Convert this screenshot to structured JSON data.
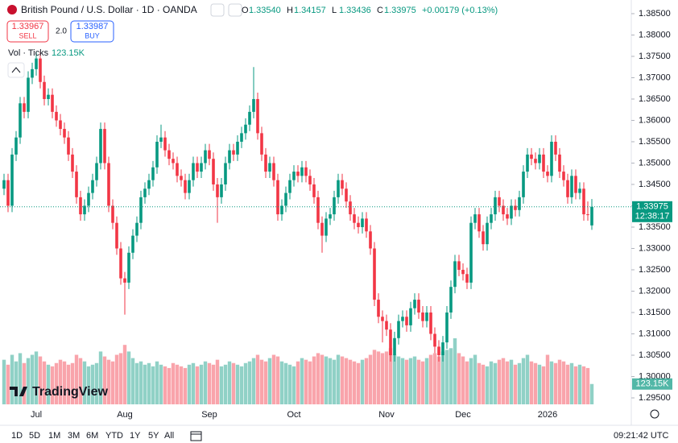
{
  "header": {
    "title": "British Pound / U.S. Dollar · 1D · OANDA",
    "ohlc": [
      {
        "key": "O",
        "value": "1.33540"
      },
      {
        "key": "H",
        "value": "1.34157"
      },
      {
        "key": "L",
        "value": "1.33436"
      },
      {
        "key": "C",
        "value": "1.33975"
      }
    ],
    "change": "+0.00179 (+0.13%)",
    "sell_price": "1.33967",
    "sell": "SELL",
    "spread": "2.0",
    "buy_price": "1.33987",
    "buy": "BUY",
    "volume_title": "Vol · Ticks",
    "volume_value": "123.15K"
  },
  "price_badge": {
    "price": "1.33975",
    "countdown": "12:38:17"
  },
  "logo": "TradingView",
  "toolbar": {
    "ranges": [
      "1D",
      "5D",
      "1M",
      "3M",
      "6M",
      "YTD",
      "1Y",
      "5Y",
      "All"
    ],
    "clock": "09:21:42 UTC"
  },
  "chart_data": {
    "type": "candlestick",
    "up_color": "#089981",
    "down_color": "#f23645",
    "ylim": [
      1.2933,
      1.3882
    ],
    "yticks": [
      {
        "value": 1.385,
        "label": "1.38500"
      },
      {
        "value": 1.38,
        "label": "1.38000"
      },
      {
        "value": 1.375,
        "label": "1.37500"
      },
      {
        "value": 1.37,
        "label": "1.37000"
      },
      {
        "value": 1.365,
        "label": "1.36500"
      },
      {
        "value": 1.36,
        "label": "1.36000"
      },
      {
        "value": 1.355,
        "label": "1.35500"
      },
      {
        "value": 1.35,
        "label": "1.35000"
      },
      {
        "value": 1.345,
        "label": "1.34500"
      },
      {
        "value": 1.34,
        "label": "1.34000"
      },
      {
        "value": 1.335,
        "label": "1.33500"
      },
      {
        "value": 1.33,
        "label": "1.33000"
      },
      {
        "value": 1.325,
        "label": "1.32500"
      },
      {
        "value": 1.32,
        "label": "1.32000"
      },
      {
        "value": 1.315,
        "label": "1.31500"
      },
      {
        "value": 1.31,
        "label": "1.31000"
      },
      {
        "value": 1.305,
        "label": "1.30500"
      },
      {
        "value": 1.3,
        "label": "1.30000"
      },
      {
        "value": 1.295,
        "label": "1.29500"
      }
    ],
    "categories": [
      null,
      null,
      null,
      null,
      null,
      null,
      null,
      null,
      "Jul",
      null,
      null,
      null,
      null,
      null,
      null,
      null,
      null,
      null,
      null,
      null,
      null,
      null,
      null,
      null,
      null,
      null,
      null,
      null,
      null,
      null,
      "Aug",
      null,
      null,
      null,
      null,
      null,
      null,
      null,
      null,
      null,
      null,
      null,
      null,
      null,
      null,
      null,
      null,
      null,
      null,
      null,
      null,
      "Sep",
      null,
      null,
      null,
      null,
      null,
      null,
      null,
      null,
      null,
      null,
      null,
      null,
      null,
      null,
      null,
      null,
      null,
      null,
      null,
      null,
      "Oct",
      null,
      null,
      null,
      null,
      null,
      null,
      null,
      null,
      null,
      null,
      null,
      null,
      null,
      null,
      null,
      null,
      null,
      null,
      null,
      null,
      null,
      null,
      "Nov",
      null,
      null,
      null,
      null,
      null,
      null,
      null,
      null,
      null,
      null,
      null,
      null,
      null,
      null,
      null,
      null,
      null,
      null,
      "Dec",
      null,
      null,
      null,
      null,
      null,
      null,
      null,
      null,
      null,
      null,
      null,
      null,
      null,
      null,
      null,
      null,
      null,
      null,
      null,
      null,
      "2026",
      null,
      null,
      null,
      null,
      null,
      null,
      null,
      null,
      null,
      null,
      null
    ],
    "open": [
      1.344,
      1.346,
      1.34,
      1.352,
      1.356,
      1.364,
      1.362,
      1.37,
      1.372,
      1.3745,
      1.369,
      1.365,
      1.366,
      1.362,
      1.36,
      1.358,
      1.356,
      1.352,
      1.348,
      1.342,
      1.338,
      1.34,
      1.343,
      1.346,
      1.35,
      1.358,
      1.35,
      1.34,
      1.336,
      1.33,
      1.323,
      1.322,
      1.329,
      1.333,
      1.336,
      1.342,
      1.344,
      1.346,
      1.349,
      1.355,
      1.356,
      1.353,
      1.351,
      1.35,
      1.347,
      1.346,
      1.343,
      1.346,
      1.35,
      1.348,
      1.35,
      1.353,
      1.351,
      1.345,
      1.342,
      1.345,
      1.35,
      1.353,
      1.352,
      1.355,
      1.357,
      1.359,
      1.362,
      1.365,
      1.357,
      1.352,
      1.348,
      1.35,
      1.346,
      1.338,
      1.34,
      1.343,
      1.346,
      1.348,
      1.347,
      1.349,
      1.347,
      1.345,
      1.342,
      1.336,
      1.333,
      1.337,
      1.338,
      1.342,
      1.346,
      1.344,
      1.341,
      1.338,
      1.336,
      1.335,
      1.337,
      1.334,
      1.33,
      1.318,
      1.314,
      1.313,
      1.311,
      1.305,
      1.309,
      1.313,
      1.314,
      1.312,
      1.316,
      1.318,
      1.315,
      1.313,
      1.315,
      1.31,
      1.307,
      1.305,
      1.308,
      1.315,
      1.321,
      1.327,
      1.325,
      1.324,
      1.322,
      1.336,
      1.338,
      1.334,
      1.331,
      1.336,
      1.338,
      1.342,
      1.34,
      1.338,
      1.337,
      1.34,
      1.339,
      1.342,
      1.348,
      1.352,
      1.351,
      1.35,
      1.352,
      1.348,
      1.347,
      1.355,
      1.352,
      1.348,
      1.346,
      1.342,
      1.347,
      1.343,
      1.344,
      1.338,
      1.3354
    ],
    "high": [
      1.3475,
      1.3475,
      1.3535,
      1.3575,
      1.3655,
      1.3655,
      1.3715,
      1.3735,
      1.376,
      1.376,
      1.3705,
      1.3675,
      1.3675,
      1.3635,
      1.3615,
      1.3595,
      1.3575,
      1.3535,
      1.3495,
      1.3435,
      1.3415,
      1.3445,
      1.3475,
      1.3515,
      1.3595,
      1.3595,
      1.3515,
      1.3415,
      1.3375,
      1.3315,
      1.3245,
      1.3305,
      1.3345,
      1.3375,
      1.3435,
      1.3455,
      1.3475,
      1.3505,
      1.3565,
      1.359,
      1.3575,
      1.3545,
      1.3525,
      1.3515,
      1.3485,
      1.3475,
      1.3475,
      1.3515,
      1.3515,
      1.3515,
      1.3545,
      1.3545,
      1.3525,
      1.3465,
      1.3465,
      1.3515,
      1.3545,
      1.3545,
      1.3565,
      1.3585,
      1.3605,
      1.3635,
      1.3725,
      1.3665,
      1.3585,
      1.3535,
      1.3515,
      1.3515,
      1.3475,
      1.3415,
      1.3445,
      1.3475,
      1.3495,
      1.3495,
      1.3505,
      1.3505,
      1.3485,
      1.3465,
      1.3435,
      1.3375,
      1.3385,
      1.3395,
      1.3435,
      1.3475,
      1.3475,
      1.3455,
      1.3425,
      1.3395,
      1.3375,
      1.3385,
      1.3385,
      1.3355,
      1.3315,
      1.3195,
      1.3155,
      1.3145,
      1.3125,
      1.3105,
      1.3145,
      1.3155,
      1.3155,
      1.3175,
      1.3195,
      1.3195,
      1.3165,
      1.3165,
      1.3165,
      1.3115,
      1.3085,
      1.3095,
      1.3165,
      1.3225,
      1.3285,
      1.3285,
      1.3265,
      1.3255,
      1.3375,
      1.3395,
      1.3395,
      1.3355,
      1.3375,
      1.3395,
      1.3435,
      1.3435,
      1.3415,
      1.3395,
      1.3415,
      1.3415,
      1.3435,
      1.3495,
      1.3535,
      1.3535,
      1.3525,
      1.3535,
      1.3535,
      1.3495,
      1.3565,
      1.3565,
      1.3535,
      1.3495,
      1.3475,
      1.3485,
      1.3485,
      1.3455,
      1.3455,
      1.341,
      1.34157
    ],
    "low": [
      1.3425,
      1.3385,
      1.3385,
      1.3505,
      1.3545,
      1.3605,
      1.3605,
      1.3685,
      1.3705,
      1.3675,
      1.3635,
      1.3635,
      1.3605,
      1.3585,
      1.3565,
      1.3545,
      1.3505,
      1.3465,
      1.3405,
      1.3365,
      1.3365,
      1.3385,
      1.3415,
      1.3445,
      1.3485,
      1.3485,
      1.3385,
      1.3345,
      1.3285,
      1.3215,
      1.3145,
      1.3205,
      1.3275,
      1.3315,
      1.3345,
      1.3405,
      1.3425,
      1.3445,
      1.3475,
      1.3535,
      1.3515,
      1.3495,
      1.3485,
      1.3455,
      1.3445,
      1.3415,
      1.3415,
      1.3445,
      1.3465,
      1.3465,
      1.3485,
      1.3495,
      1.3435,
      1.336,
      1.3405,
      1.3435,
      1.3485,
      1.3505,
      1.3505,
      1.3535,
      1.3555,
      1.3575,
      1.3605,
      1.3555,
      1.3505,
      1.3465,
      1.3465,
      1.3445,
      1.3365,
      1.3365,
      1.3385,
      1.3415,
      1.3445,
      1.3455,
      1.3455,
      1.3455,
      1.3435,
      1.3405,
      1.3345,
      1.329,
      1.3315,
      1.3355,
      1.3365,
      1.3405,
      1.3425,
      1.3395,
      1.3365,
      1.3345,
      1.3335,
      1.3335,
      1.3325,
      1.3285,
      1.3165,
      1.3125,
      1.308,
      1.3095,
      1.3035,
      1.3035,
      1.3075,
      1.3115,
      1.3105,
      1.3105,
      1.3145,
      1.3135,
      1.3115,
      1.3115,
      1.3085,
      1.3055,
      1.3035,
      1.3035,
      1.3065,
      1.3135,
      1.3195,
      1.3235,
      1.3225,
      1.3205,
      1.3205,
      1.3345,
      1.3325,
      1.3295,
      1.3295,
      1.3345,
      1.3365,
      1.3385,
      1.3365,
      1.3355,
      1.3355,
      1.3375,
      1.3375,
      1.3405,
      1.3465,
      1.3495,
      1.3485,
      1.3485,
      1.3465,
      1.3455,
      1.3455,
      1.3505,
      1.3465,
      1.3445,
      1.3405,
      1.3405,
      1.3415,
      1.3415,
      1.3365,
      1.3365,
      1.33436
    ],
    "close": [
      1.346,
      1.34,
      1.352,
      1.356,
      1.364,
      1.362,
      1.37,
      1.372,
      1.3745,
      1.369,
      1.365,
      1.366,
      1.362,
      1.36,
      1.358,
      1.356,
      1.352,
      1.348,
      1.342,
      1.338,
      1.34,
      1.343,
      1.346,
      1.35,
      1.358,
      1.35,
      1.34,
      1.336,
      1.33,
      1.323,
      1.322,
      1.329,
      1.333,
      1.336,
      1.342,
      1.344,
      1.346,
      1.349,
      1.355,
      1.356,
      1.353,
      1.351,
      1.35,
      1.347,
      1.346,
      1.343,
      1.346,
      1.35,
      1.348,
      1.35,
      1.353,
      1.351,
      1.345,
      1.342,
      1.345,
      1.35,
      1.353,
      1.352,
      1.355,
      1.357,
      1.359,
      1.362,
      1.365,
      1.357,
      1.352,
      1.348,
      1.35,
      1.346,
      1.338,
      1.34,
      1.343,
      1.346,
      1.348,
      1.347,
      1.349,
      1.347,
      1.345,
      1.342,
      1.336,
      1.333,
      1.337,
      1.338,
      1.342,
      1.346,
      1.344,
      1.341,
      1.338,
      1.336,
      1.335,
      1.337,
      1.334,
      1.33,
      1.318,
      1.314,
      1.313,
      1.311,
      1.305,
      1.309,
      1.313,
      1.314,
      1.312,
      1.316,
      1.318,
      1.315,
      1.313,
      1.315,
      1.31,
      1.307,
      1.305,
      1.308,
      1.315,
      1.321,
      1.327,
      1.325,
      1.324,
      1.322,
      1.336,
      1.338,
      1.334,
      1.331,
      1.336,
      1.338,
      1.342,
      1.34,
      1.338,
      1.337,
      1.34,
      1.339,
      1.342,
      1.348,
      1.352,
      1.351,
      1.35,
      1.352,
      1.348,
      1.347,
      1.355,
      1.352,
      1.348,
      1.346,
      1.342,
      1.347,
      1.343,
      1.344,
      1.338,
      1.33796,
      1.33975
    ],
    "volume": [
      270000,
      240000,
      300000,
      260000,
      310000,
      250000,
      280000,
      300000,
      320000,
      290000,
      260000,
      240000,
      230000,
      250000,
      270000,
      260000,
      240000,
      250000,
      300000,
      280000,
      260000,
      230000,
      240000,
      250000,
      320000,
      290000,
      270000,
      260000,
      300000,
      310000,
      360000,
      320000,
      280000,
      250000,
      260000,
      240000,
      250000,
      230000,
      260000,
      240000,
      230000,
      220000,
      250000,
      240000,
      230000,
      220000,
      240000,
      250000,
      230000,
      240000,
      260000,
      250000,
      240000,
      270000,
      230000,
      240000,
      260000,
      250000,
      240000,
      230000,
      250000,
      260000,
      280000,
      300000,
      270000,
      260000,
      280000,
      300000,
      290000,
      260000,
      250000,
      240000,
      230000,
      260000,
      280000,
      270000,
      260000,
      290000,
      310000,
      300000,
      290000,
      280000,
      270000,
      300000,
      290000,
      280000,
      270000,
      260000,
      250000,
      270000,
      280000,
      300000,
      330000,
      320000,
      310000,
      320000,
      340000,
      300000,
      290000,
      280000,
      270000,
      280000,
      290000,
      270000,
      260000,
      280000,
      300000,
      310000,
      290000,
      320000,
      330000,
      340000,
      400000,
      310000,
      290000,
      260000,
      280000,
      300000,
      250000,
      240000,
      230000,
      260000,
      250000,
      270000,
      280000,
      260000,
      270000,
      240000,
      250000,
      280000,
      300000,
      260000,
      250000,
      240000,
      230000,
      300000,
      260000,
      250000,
      270000,
      260000,
      240000,
      250000,
      230000,
      240000,
      230000,
      220000,
      123150
    ]
  }
}
